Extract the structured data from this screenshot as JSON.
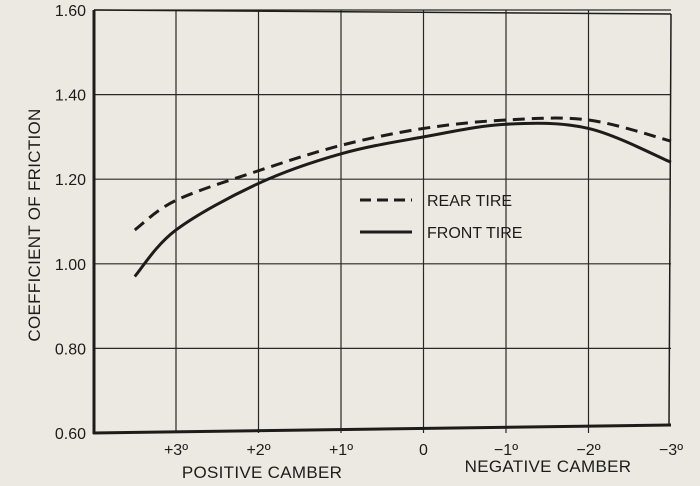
{
  "chart_data": {
    "type": "line",
    "title": "",
    "xlabel_left": "POSITIVE CAMBER",
    "xlabel_right": "NEGATIVE CAMBER",
    "ylabel": "COEFFICIENT OF FRICTION",
    "x": [
      3.5,
      3,
      2,
      1,
      0,
      -1,
      -2,
      -3
    ],
    "x_tick_labels": [
      "+3º",
      "+2º",
      "+1º",
      "0",
      "−1º",
      "−2º",
      "−3º"
    ],
    "x_tick_values": [
      3,
      2,
      1,
      0,
      -1,
      -2,
      -3
    ],
    "y_tick_labels": [
      "1.60",
      "1.40",
      "1.20",
      "1.00",
      "0.80",
      "0.60"
    ],
    "y_tick_values": [
      1.6,
      1.4,
      1.2,
      1.0,
      0.8,
      0.6
    ],
    "ylim": [
      0.6,
      1.6
    ],
    "xlim": [
      3.5,
      -3
    ],
    "grid": true,
    "legend_position": "center-right",
    "series": [
      {
        "name": "REAR TIRE",
        "style": "dashed",
        "values": [
          1.08,
          1.15,
          1.22,
          1.28,
          1.32,
          1.34,
          1.34,
          1.29
        ]
      },
      {
        "name": "FRONT TIRE",
        "style": "solid",
        "values": [
          0.97,
          1.08,
          1.19,
          1.26,
          1.3,
          1.33,
          1.32,
          1.24
        ]
      }
    ]
  },
  "colors": {
    "background": "#ece9e3",
    "ink": "#1e1c1a",
    "grid": "#2a2826"
  }
}
